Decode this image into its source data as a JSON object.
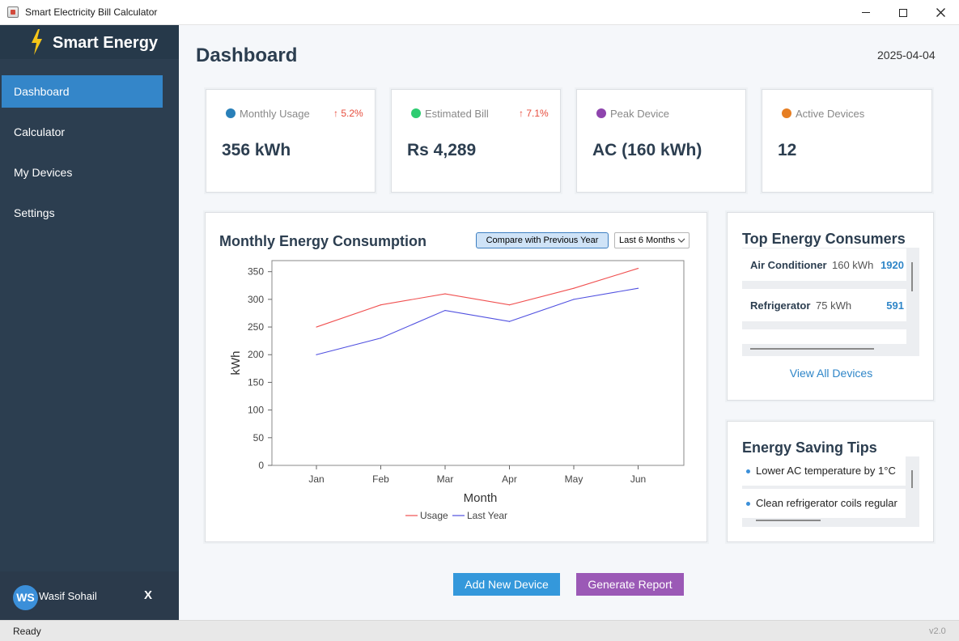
{
  "window": {
    "title": "Smart Electricity Bill Calculator"
  },
  "sidebar": {
    "brand": "Smart Energy",
    "items": [
      {
        "label": "Dashboard",
        "active": true
      },
      {
        "label": "Calculator",
        "active": false
      },
      {
        "label": "My Devices",
        "active": false
      },
      {
        "label": "Settings",
        "active": false
      }
    ],
    "user": {
      "initials": "WS",
      "name": "Wasif Sohail",
      "logout": "X"
    }
  },
  "header": {
    "title": "Dashboard",
    "date": "2025-04-04"
  },
  "stats": [
    {
      "label": "Monthly Usage",
      "value": "356 kWh",
      "trend": "↑ 5.2%",
      "color": "#2980b9"
    },
    {
      "label": "Estimated Bill",
      "value": "Rs 4,289",
      "trend": "↑ 7.1%",
      "color": "#2ecc71"
    },
    {
      "label": "Peak Device",
      "value": "AC (160 kWh)",
      "trend": "",
      "color": "#8e44ad"
    },
    {
      "label": "Active Devices",
      "value": "12",
      "trend": "",
      "color": "#e67e22"
    }
  ],
  "consumption": {
    "title": "Monthly Energy Consumption",
    "compare_button": "Compare with Previous Year",
    "range_selected": "Last 6 Months"
  },
  "chart_data": {
    "type": "line",
    "title": "",
    "xlabel": "Month",
    "ylabel": "kWh",
    "categories": [
      "Jan",
      "Feb",
      "Mar",
      "Apr",
      "May",
      "Jun"
    ],
    "ylim": [
      0,
      370
    ],
    "yticks": [
      0,
      50,
      100,
      150,
      200,
      250,
      300,
      350
    ],
    "series": [
      {
        "name": "Usage",
        "color": "#f05050",
        "values": [
          250,
          290,
          310,
          290,
          320,
          356
        ]
      },
      {
        "name": "Last Year",
        "color": "#5050e0",
        "values": [
          200,
          230,
          280,
          260,
          300,
          320
        ]
      }
    ],
    "legend": "bottom-center",
    "grid": false
  },
  "consumers": {
    "title": "Top Energy Consumers",
    "items": [
      {
        "name": "Air Conditioner",
        "kwh": "160 kWh",
        "cost": "1920"
      },
      {
        "name": "Refrigerator",
        "kwh": "75 kWh",
        "cost": "591"
      }
    ],
    "view_all": "View All Devices"
  },
  "tips": {
    "title": "Energy Saving Tips",
    "items": [
      "Lower AC temperature by 1°C",
      "Clean refrigerator coils regular"
    ]
  },
  "actions": {
    "add_device": "Add New Device",
    "generate_report": "Generate Report"
  },
  "status": {
    "text": "Ready",
    "version": "v2.0"
  },
  "colors": {
    "sidebar": "#2c3e50",
    "accent": "#3486c9",
    "report": "#9b59b6"
  }
}
